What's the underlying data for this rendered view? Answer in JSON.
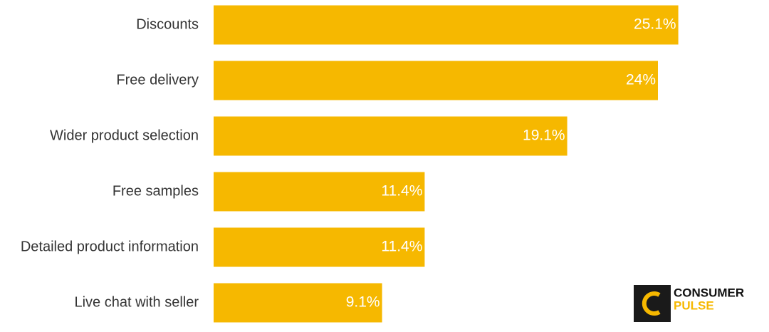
{
  "chart_data": {
    "type": "bar",
    "orientation": "horizontal",
    "categories": [
      "Discounts",
      "Free delivery",
      "Wider product selection",
      "Free samples",
      "Detailed product information",
      "Live chat with seller"
    ],
    "values": [
      25.1,
      24,
      19.1,
      11.4,
      11.4,
      9.1
    ],
    "value_labels": [
      "25.1%",
      "24%",
      "19.1%",
      "11.4%",
      "11.4%",
      "9.1%"
    ],
    "color": "#f6b800",
    "xlim": [
      0,
      30
    ],
    "annotations": [
      "CONSUMER",
      "PULSE"
    ]
  }
}
